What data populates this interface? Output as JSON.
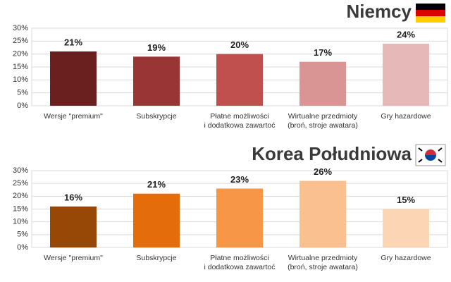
{
  "chart_data": [
    {
      "type": "bar",
      "title": "Niemcy",
      "categories": [
        "Wersje \"premium\"",
        "Subskrypcje",
        "Płatne możliwości\ni dodatkowa zawartoć",
        "Wirtualne przedmioty\n(broń, stroje awatara)",
        "Gry hazardowe"
      ],
      "values": [
        21,
        19,
        20,
        17,
        24
      ],
      "value_labels": [
        "21%",
        "19%",
        "20%",
        "17%",
        "24%"
      ],
      "colors": [
        "#6b2020",
        "#9a3535",
        "#c0504d",
        "#d99594",
        "#e6b9b8"
      ],
      "ylim": [
        0,
        30
      ],
      "yticks": [
        {
          "value": 0,
          "label": "0%"
        },
        {
          "value": 5,
          "label": "5%"
        },
        {
          "value": 10,
          "label": "10%"
        },
        {
          "value": 15,
          "label": "15%"
        },
        {
          "value": 20,
          "label": "20%"
        },
        {
          "value": 25,
          "label": "25%"
        },
        {
          "value": 30,
          "label": "30%"
        }
      ],
      "grid": true
    },
    {
      "type": "bar",
      "title": "Korea Południowa",
      "categories": [
        "Wersje \"premium\"",
        "Subskrypcje",
        "Płatne możliwości\ni dodatkowa zawartoć",
        "Wirtualne przedmioty\n(broń, stroje awatara)",
        "Gry hazardowe"
      ],
      "values": [
        16,
        21,
        23,
        26,
        15
      ],
      "value_labels": [
        "16%",
        "21%",
        "23%",
        "26%",
        "15%"
      ],
      "colors": [
        "#974706",
        "#e46c0a",
        "#f79646",
        "#fac090",
        "#fcd5b4"
      ],
      "ylim": [
        0,
        30
      ],
      "yticks": [
        {
          "value": 0,
          "label": "0%"
        },
        {
          "value": 5,
          "label": "5%"
        },
        {
          "value": 10,
          "label": "10%"
        },
        {
          "value": 15,
          "label": "15%"
        },
        {
          "value": 20,
          "label": "20%"
        },
        {
          "value": 25,
          "label": "25%"
        },
        {
          "value": 30,
          "label": "30%"
        }
      ],
      "grid": true
    }
  ]
}
